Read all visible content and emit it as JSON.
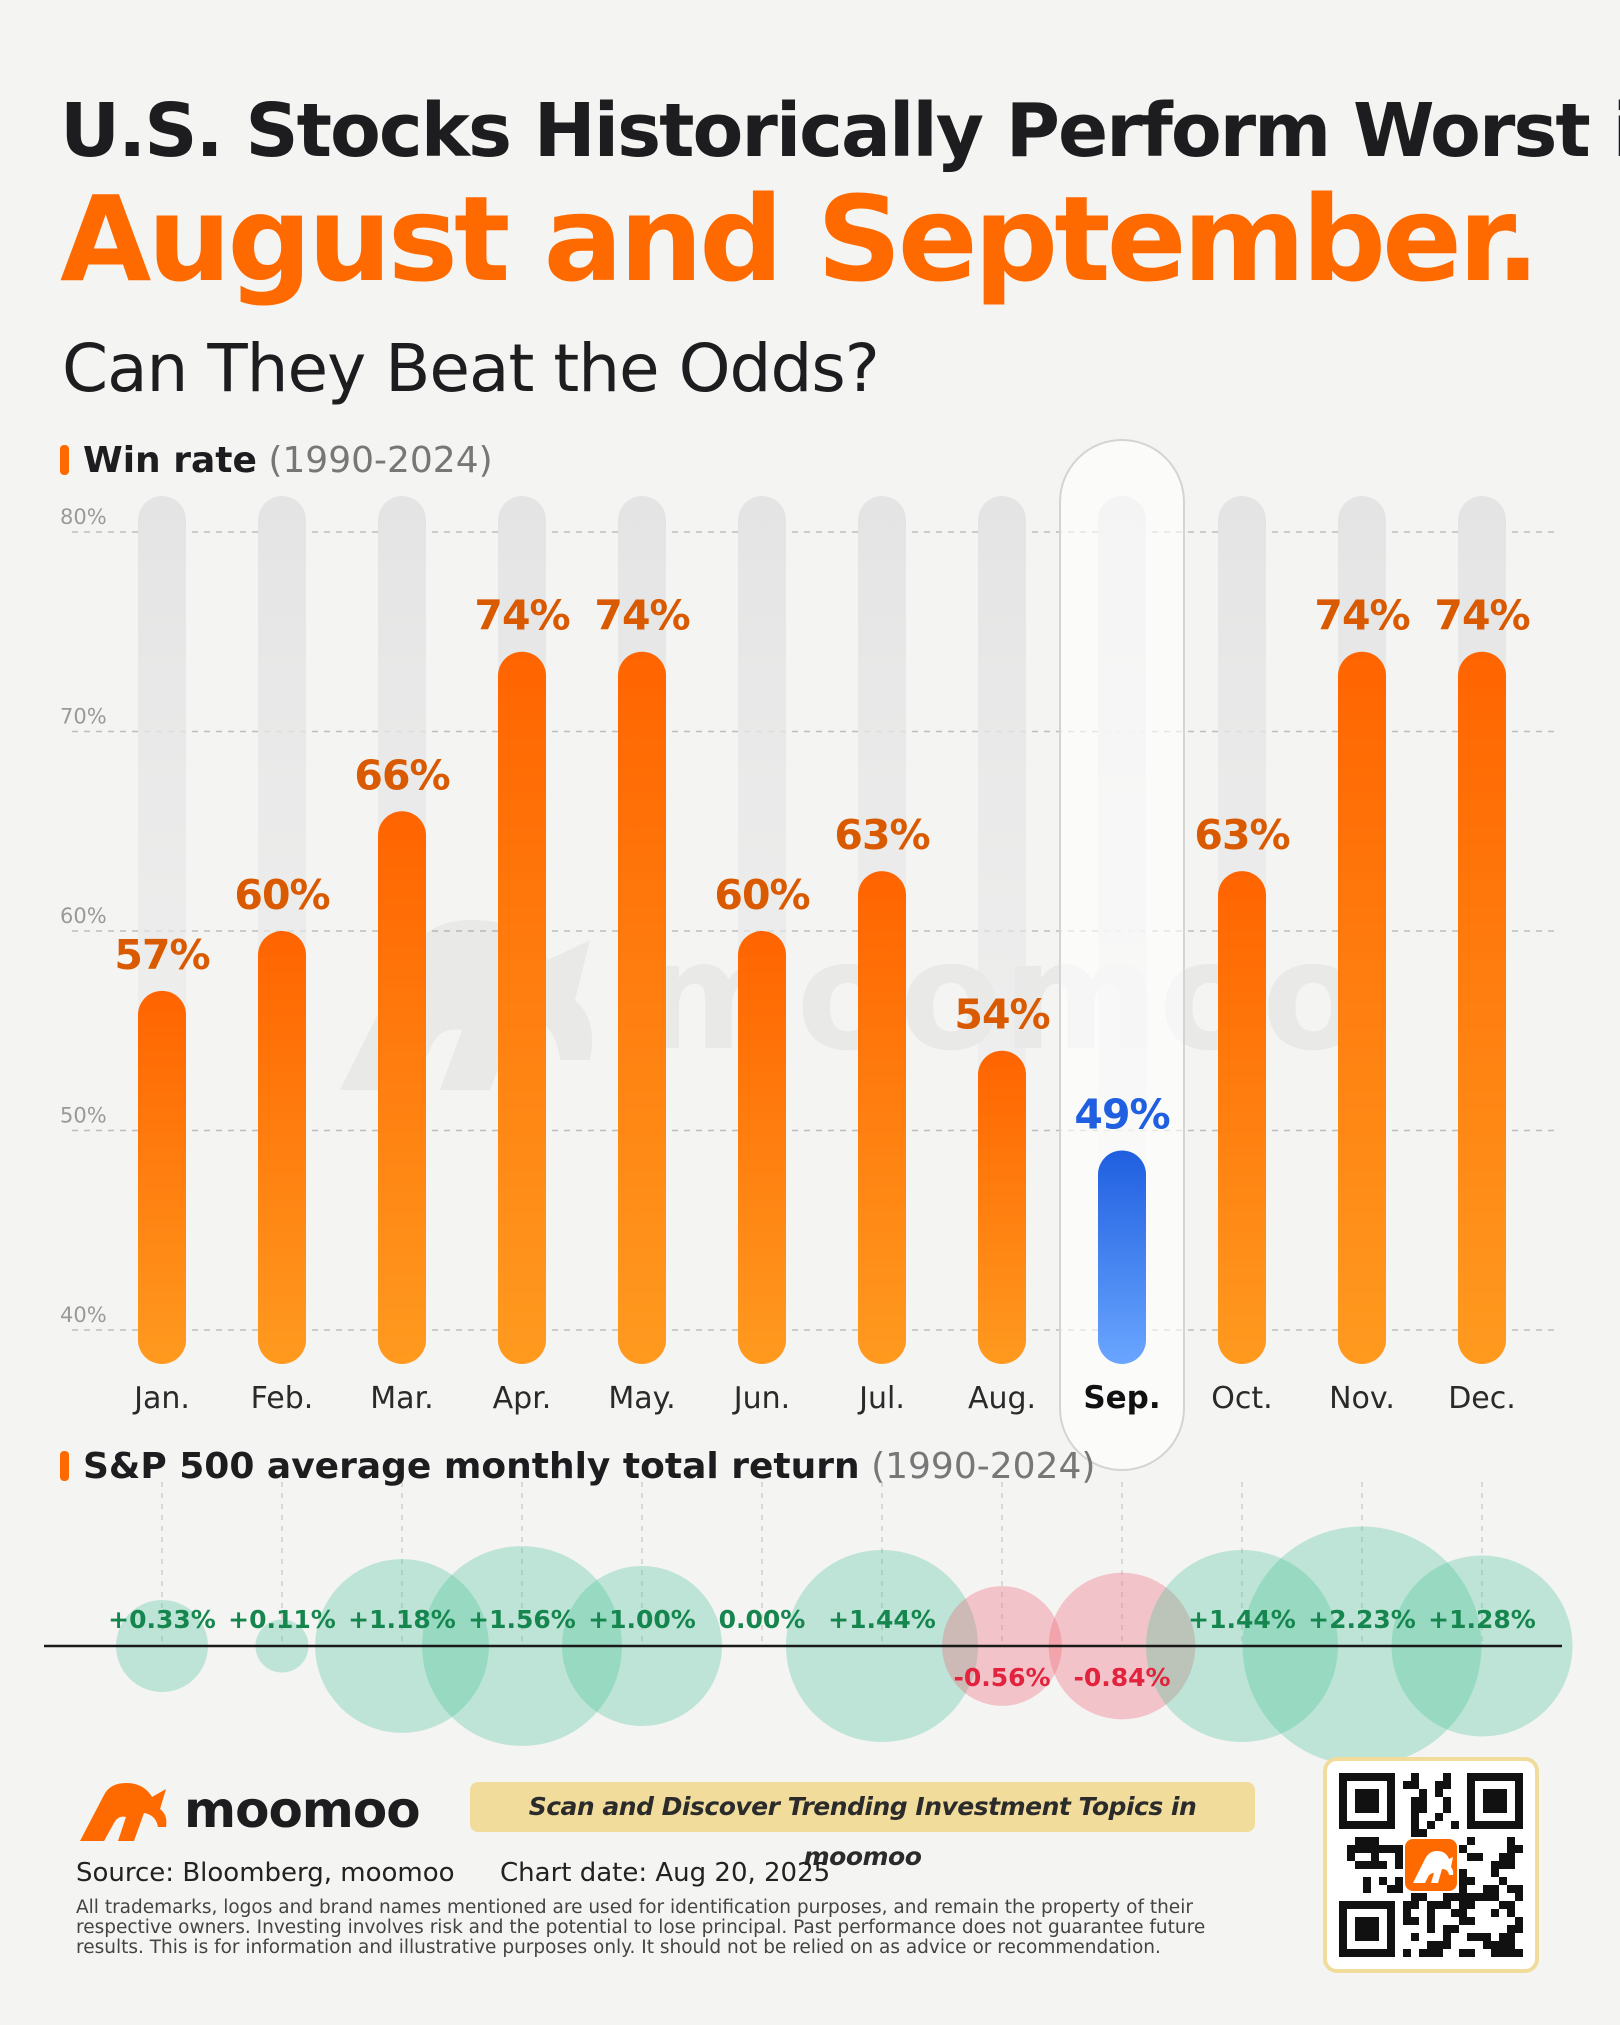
{
  "title": {
    "line1": "U.S. Stocks Historically Perform Worst in",
    "line2": "August and September.",
    "line3": "Can They Beat the Odds?"
  },
  "win_section": {
    "label": "Win rate",
    "period": "(1990-2024)"
  },
  "return_section": {
    "label": "S&P 500 average monthly total return",
    "period": "(1990-2024)"
  },
  "chart_data": [
    {
      "type": "bar",
      "title": "Win rate",
      "subtitle": "(1990-2024)",
      "categories": [
        "Jan.",
        "Feb.",
        "Mar.",
        "Apr.",
        "May.",
        "Jun.",
        "Jul.",
        "Aug.",
        "Sep.",
        "Oct.",
        "Nov.",
        "Dec."
      ],
      "values": [
        57,
        60,
        66,
        74,
        74,
        60,
        63,
        54,
        49,
        63,
        74,
        74
      ],
      "labels": [
        "57%",
        "60%",
        "66%",
        "74%",
        "74%",
        "60%",
        "63%",
        "54%",
        "49%",
        "63%",
        "74%",
        "74%"
      ],
      "unit": "%",
      "ylim": [
        40,
        80
      ],
      "yticks": [
        40,
        50,
        60,
        70,
        80
      ],
      "ytick_labels": [
        "40%",
        "50%",
        "60%",
        "70%",
        "80%"
      ],
      "grid": true,
      "highlight": "Sep.",
      "colors": {
        "bar": "#ff6a00",
        "highlight": "#2f6ff0",
        "track": "#e6e6e6"
      }
    },
    {
      "type": "bubble",
      "title": "S&P 500 average monthly total return",
      "subtitle": "(1990-2024)",
      "categories": [
        "Jan.",
        "Feb.",
        "Mar.",
        "Apr.",
        "May.",
        "Jun.",
        "Jul.",
        "Aug.",
        "Sep.",
        "Oct.",
        "Nov.",
        "Dec."
      ],
      "values": [
        0.33,
        0.11,
        1.18,
        1.56,
        1.0,
        0.0,
        1.44,
        -0.56,
        -0.84,
        1.44,
        2.23,
        1.28
      ],
      "labels": [
        "+0.33%",
        "+0.11%",
        "+1.18%",
        "+1.56%",
        "+1.00%",
        "0.00%",
        "+1.44%",
        "-0.56%",
        "-0.84%",
        "+1.44%",
        "+2.23%",
        "+1.28%"
      ],
      "unit": "%",
      "colors": {
        "positive": "#4cc497",
        "negative": "#f0616f",
        "positive_text": "#16864f",
        "negative_text": "#e3233e"
      }
    }
  ],
  "watermark": "moomoo",
  "footer": {
    "brand": "moomoo",
    "banner": "Scan and Discover Trending Investment Topics in moomoo",
    "source": "Source: Bloomberg, moomoo",
    "chart_date": "Chart date: Aug 20, 2025",
    "disclaimer": "All trademarks, logos and brand names mentioned are used for identification purposes, and remain the property of their respective owners. Investing involves risk and the potential to lose principal. Past performance does not guarantee future results. This is for information and illustrative purposes only. It should not be relied on as advice or recommendation."
  }
}
